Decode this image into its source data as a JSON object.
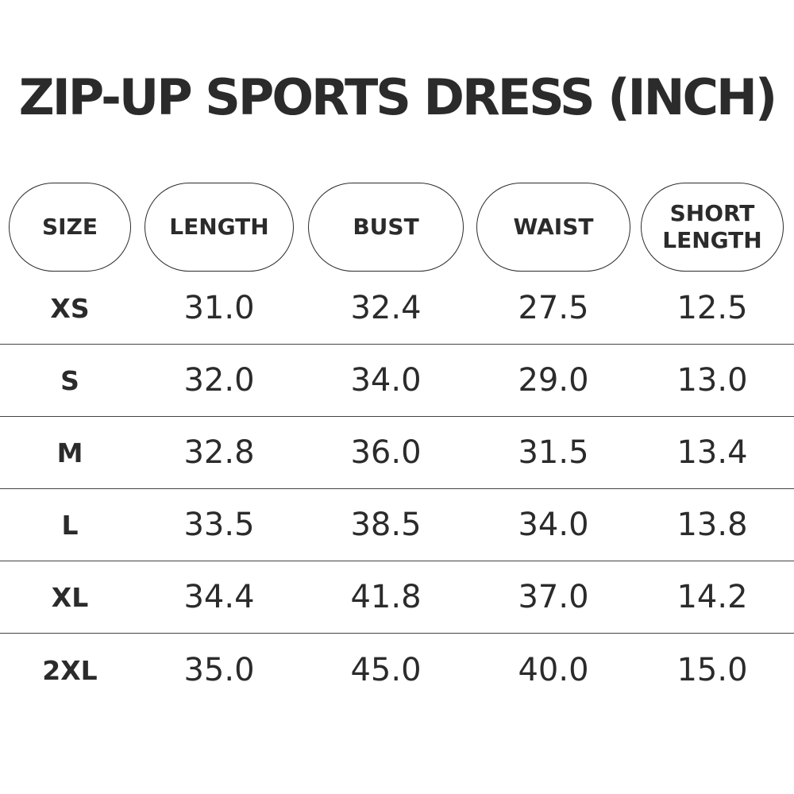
{
  "title": "ZIP-UP SPORTS DRESS (INCH)",
  "headers": {
    "size": "SIZE",
    "length": "LENGTH",
    "bust": "BUST",
    "waist": "WAIST",
    "short_length_line1": "SHORT",
    "short_length_line2": "LENGTH"
  },
  "rows": [
    {
      "size": "XS",
      "length": "31.0",
      "bust": "32.4",
      "waist": "27.5",
      "short_length": "12.5"
    },
    {
      "size": "S",
      "length": "32.0",
      "bust": "34.0",
      "waist": "29.0",
      "short_length": "13.0"
    },
    {
      "size": "M",
      "length": "32.8",
      "bust": "36.0",
      "waist": "31.5",
      "short_length": "13.4"
    },
    {
      "size": "L",
      "length": "33.5",
      "bust": "38.5",
      "waist": "34.0",
      "short_length": "13.8"
    },
    {
      "size": "XL",
      "length": "34.4",
      "bust": "41.8",
      "waist": "37.0",
      "short_length": "14.2"
    },
    {
      "size": "2XL",
      "length": "35.0",
      "bust": "45.0",
      "waist": "40.0",
      "short_length": "15.0"
    }
  ],
  "colors": {
    "text": "#2b2b2b",
    "rule": "#444444",
    "background": "#ffffff"
  }
}
